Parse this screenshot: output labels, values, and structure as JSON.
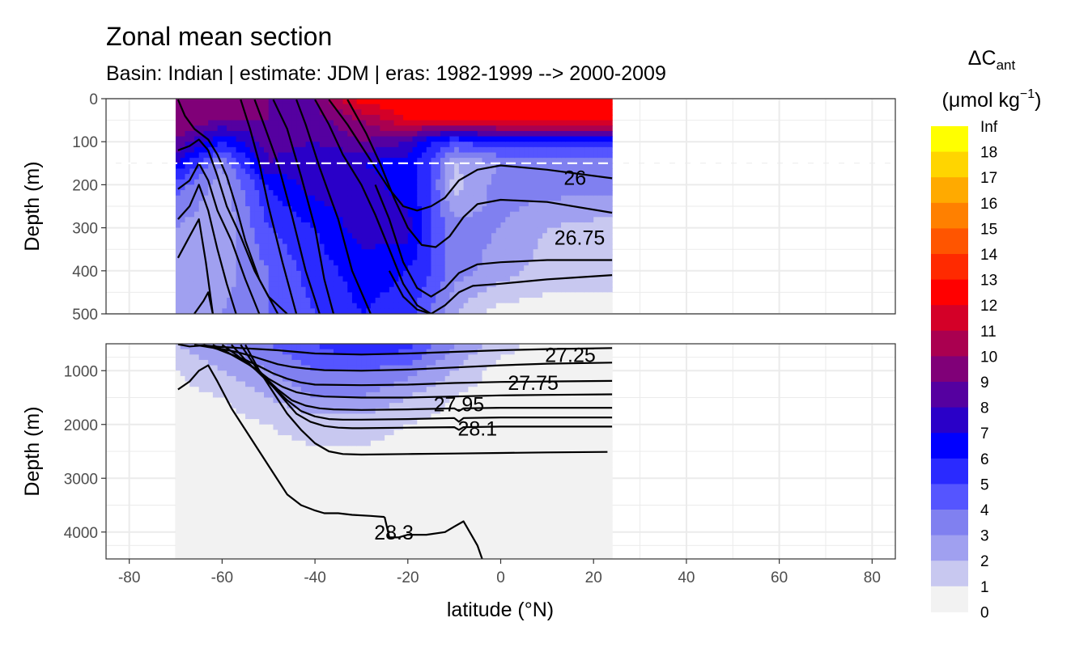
{
  "chart_data": {
    "type": "contour",
    "title": "Zonal mean section",
    "subtitle": "Basin: Indian | estimate: JDM  | eras: 1982-1999 --> 2000-2009",
    "xlabel": "latitude (°N)",
    "ylabel_top": "Depth (m)",
    "ylabel_bottom": "Depth (m)",
    "xlim": [
      -85,
      85
    ],
    "x_ticks": [
      -80,
      -60,
      -40,
      -20,
      0,
      20,
      40,
      60,
      80
    ],
    "x_tick_labels": [
      "-80",
      "-60",
      "-40",
      "-20",
      "0",
      "20",
      "40",
      "60",
      "80"
    ],
    "panels": [
      {
        "name": "upper",
        "ylim": [
          0,
          500
        ],
        "y_ticks": [
          0,
          100,
          200,
          300,
          400,
          500
        ],
        "y_tick_labels": [
          "0",
          "100",
          "200",
          "300",
          "400",
          "500"
        ]
      },
      {
        "name": "lower",
        "ylim": [
          500,
          4500
        ],
        "y_ticks": [
          1000,
          2000,
          3000,
          4000
        ],
        "y_tick_labels": [
          "1000",
          "2000",
          "3000",
          "4000"
        ]
      }
    ],
    "data_extent_lat": [
      -70,
      24
    ],
    "reference_depth_line": 150,
    "grid": true,
    "legend": {
      "title": "ΔC",
      "title_subscript": "ant",
      "units_prefix": "(μmol kg",
      "units_superscript": "−1",
      "units_suffix": ")",
      "placement": "right",
      "levels": [
        "Inf",
        "18",
        "17",
        "16",
        "15",
        "14",
        "13",
        "12",
        "11",
        "10",
        "9",
        "8",
        "7",
        "6",
        "5",
        "4",
        "3",
        "2",
        "1",
        "0"
      ],
      "colors": [
        "#ffff00",
        "#ffd500",
        "#ffaa00",
        "#ff8000",
        "#ff5500",
        "#ff2a00",
        "#ff0000",
        "#d40028",
        "#aa0050",
        "#800078",
        "#5500a0",
        "#2a00c8",
        "#0000ff",
        "#2a2aff",
        "#5555ff",
        "#8080f0",
        "#a0a0f0",
        "#c8c8f0",
        "#f2f2f2"
      ]
    },
    "fill_field_upper": [
      {
        "lat": [
          -70,
          -60,
          -50,
          -40,
          -30,
          -20,
          -15,
          -10,
          0,
          10,
          24
        ],
        "depth": 0,
        "dcant": [
          9.5,
          10,
          9,
          9,
          12.5,
          13,
          13,
          13,
          13,
          13,
          13
        ]
      },
      {
        "lat": [
          -70,
          -60,
          -50,
          -40,
          -30,
          -20,
          -15,
          -10,
          0,
          10,
          24
        ],
        "depth": 50,
        "dcant": [
          10,
          9,
          9,
          8.5,
          10,
          12,
          12,
          12,
          12.5,
          12.5,
          12.5
        ]
      },
      {
        "lat": [
          -70,
          -60,
          -50,
          -40,
          -30,
          -20,
          -15,
          -10,
          0,
          10,
          24
        ],
        "depth": 100,
        "dcant": [
          9,
          6,
          8.5,
          8,
          9,
          8,
          6,
          5,
          6,
          6,
          6
        ]
      },
      {
        "lat": [
          -70,
          -60,
          -50,
          -40,
          -30,
          -20,
          -15,
          -10,
          0,
          10,
          24
        ],
        "depth": 150,
        "dcant": [
          7,
          3,
          8,
          7,
          7,
          6.5,
          5,
          2,
          3,
          3,
          3
        ]
      },
      {
        "lat": [
          -70,
          -60,
          -50,
          -40,
          -30,
          -20,
          -15,
          -10,
          0,
          10,
          24
        ],
        "depth": 200,
        "dcant": [
          4.5,
          2.5,
          6,
          7.5,
          7.5,
          6.5,
          5,
          1.5,
          3.5,
          3.5,
          3.5
        ]
      },
      {
        "lat": [
          -70,
          -60,
          -50,
          -40,
          -30,
          -20,
          -15,
          -10,
          0,
          10,
          24
        ],
        "depth": 300,
        "dcant": [
          3,
          2,
          5,
          6,
          7.5,
          7.5,
          5,
          3.5,
          3,
          2,
          1.5
        ]
      },
      {
        "lat": [
          -70,
          -60,
          -50,
          -40,
          -30,
          -20,
          -15,
          -10,
          0,
          10,
          24
        ],
        "depth": 400,
        "dcant": [
          2.5,
          2.5,
          4,
          5.5,
          6.5,
          6,
          5,
          3.5,
          2.5,
          1.5,
          1.5
        ]
      },
      {
        "lat": [
          -70,
          -60,
          -50,
          -40,
          -30,
          -20,
          -15,
          -10,
          0,
          10,
          24
        ],
        "depth": 500,
        "dcant": [
          2,
          3,
          4,
          5,
          6,
          5.5,
          4,
          2,
          0.5,
          0.5,
          0.5
        ]
      }
    ],
    "fill_field_lower": [
      {
        "lat": [
          -70,
          -60,
          -50,
          -40,
          -30,
          -20,
          -10,
          0,
          10,
          24
        ],
        "depth": 500,
        "dcant": [
          2,
          3,
          4,
          5,
          6,
          5.5,
          3,
          1.5,
          0.5,
          0.5
        ]
      },
      {
        "lat": [
          -70,
          -60,
          -50,
          -40,
          -30,
          -20,
          -10,
          0,
          10,
          24
        ],
        "depth": 1000,
        "dcant": [
          1,
          2,
          3,
          4,
          4,
          3.5,
          2,
          0.5,
          0.2,
          0.2
        ]
      },
      {
        "lat": [
          -70,
          -60,
          -50,
          -40,
          -30,
          -20,
          -10,
          0,
          10,
          24
        ],
        "depth": 1500,
        "dcant": [
          0.5,
          1,
          2,
          3,
          3,
          2,
          1,
          0.3,
          0.1,
          0.1
        ]
      },
      {
        "lat": [
          -70,
          -60,
          -50,
          -40,
          -30,
          -20,
          -10,
          0,
          10,
          24
        ],
        "depth": 2000,
        "dcant": [
          0.3,
          0.5,
          1,
          1.5,
          1.5,
          1,
          0.5,
          0.2,
          0.1,
          0.1
        ]
      },
      {
        "lat": [
          -70,
          -60,
          -50,
          -40,
          -30,
          -20,
          -10,
          0,
          10,
          24
        ],
        "depth": 3000,
        "dcant": [
          0.2,
          0.2,
          0.3,
          0.3,
          0.3,
          0.2,
          0.2,
          0.1,
          0.1,
          0.1
        ]
      },
      {
        "lat": [
          -70,
          -60,
          -50,
          -40,
          -30,
          -20,
          -10,
          0,
          10,
          24
        ],
        "depth": 4500,
        "dcant": [
          0.1,
          0.1,
          0.1,
          0.1,
          0.1,
          0.1,
          0.1,
          0.1,
          0.1,
          0.1
        ]
      }
    ],
    "isopycnals_upper": [
      {
        "lat": [
          -69.5,
          -68,
          -66,
          -63,
          -61,
          -59,
          -57,
          -55,
          -52,
          -48
        ],
        "depth": [
          2,
          40,
          70,
          95,
          130,
          180,
          250,
          330,
          420,
          500
        ]
      },
      {
        "lat": [
          -69.5,
          -67,
          -65,
          -63,
          -61,
          -59,
          -56,
          -53,
          -50,
          -46
        ],
        "depth": [
          120,
          110,
          95,
          120,
          180,
          250,
          320,
          400,
          460,
          500
        ]
      },
      {
        "lat": [
          -69.5,
          -67,
          -65,
          -63,
          -61,
          -58,
          -55,
          -52
        ],
        "depth": [
          210,
          190,
          150,
          190,
          260,
          330,
          420,
          500
        ]
      },
      {
        "lat": [
          -69.5,
          -67,
          -65,
          -63,
          -61,
          -59,
          -57
        ],
        "depth": [
          280,
          250,
          200,
          260,
          350,
          430,
          500
        ]
      },
      {
        "lat": [
          -69.5,
          -67,
          -65,
          -63.5,
          -62
        ],
        "depth": [
          370,
          320,
          280,
          380,
          500
        ]
      },
      {
        "lat": [
          -66,
          -64,
          -63,
          -62
        ],
        "depth": [
          500,
          470,
          450,
          500
        ]
      },
      {
        "lat": [
          -56,
          -54,
          -52,
          -50,
          -47,
          -44
        ],
        "depth": [
          2,
          70,
          150,
          250,
          380,
          500
        ]
      },
      {
        "lat": [
          -53,
          -51,
          -48,
          -45,
          -42,
          -39
        ],
        "depth": [
          2,
          60,
          150,
          270,
          400,
          500
        ]
      },
      {
        "lat": [
          -49,
          -46,
          -43,
          -40,
          -38,
          -36
        ],
        "depth": [
          2,
          70,
          180,
          300,
          420,
          500
        ]
      },
      {
        "lat": [
          -44,
          -42,
          -39,
          -35,
          -32,
          -28
        ],
        "depth": [
          2,
          60,
          160,
          280,
          400,
          500
        ]
      },
      {
        "lat": [
          -40,
          -37,
          -34,
          -30,
          -27,
          -24,
          -21,
          -18,
          -15
        ],
        "depth": [
          2,
          60,
          130,
          200,
          270,
          350,
          430,
          480,
          500
        ]
      },
      {
        "lat": [
          -37,
          -33,
          -30,
          -27,
          -24,
          -21,
          -18,
          -15,
          -12,
          -9,
          -5,
          0,
          10,
          24
        ],
        "depth": [
          2,
          60,
          110,
          160,
          210,
          250,
          260,
          250,
          230,
          190,
          165,
          155,
          165,
          185
        ]
      },
      {
        "lat": [
          -33,
          -29,
          -26,
          -23,
          -20,
          -17,
          -14,
          -11,
          -8,
          -5,
          0,
          10,
          24
        ],
        "depth": [
          2,
          80,
          150,
          230,
          300,
          340,
          345,
          320,
          275,
          245,
          235,
          240,
          265
        ]
      },
      {
        "lat": [
          -27,
          -24,
          -21,
          -18,
          -15,
          -12,
          -9,
          -5,
          0,
          10,
          24
        ],
        "depth": [
          200,
          280,
          380,
          440,
          460,
          440,
          405,
          385,
          380,
          375,
          375
        ]
      },
      {
        "lat": [
          -24,
          -21,
          -18,
          -15,
          -12,
          -9,
          -6,
          0,
          10,
          24
        ],
        "depth": [
          400,
          460,
          490,
          500,
          480,
          450,
          435,
          430,
          420,
          410
        ]
      }
    ],
    "isopycnals_lower": [
      {
        "lat": [
          -69.5,
          -67,
          -64,
          -60,
          -56,
          -52,
          -48,
          -44,
          -40,
          -30,
          -20,
          -10,
          0,
          10,
          24
        ],
        "depth": [
          510,
          550,
          530,
          560,
          580,
          600,
          620,
          650,
          680,
          700,
          680,
          650,
          620,
          600,
          580
        ]
      },
      {
        "lat": [
          -66,
          -63,
          -60,
          -57,
          -54,
          -51,
          -48,
          -45,
          -42,
          -38,
          -30,
          -20,
          -10,
          0,
          10,
          24
        ],
        "depth": [
          520,
          560,
          600,
          650,
          720,
          800,
          880,
          930,
          960,
          990,
          1000,
          980,
          940,
          900,
          870,
          850
        ]
      },
      {
        "lat": [
          -64,
          -61,
          -58,
          -55,
          -52,
          -49,
          -46,
          -43,
          -40,
          -30,
          -20,
          -10,
          0,
          10,
          24
        ],
        "depth": [
          520,
          600,
          700,
          800,
          920,
          1050,
          1150,
          1220,
          1260,
          1270,
          1260,
          1230,
          1210,
          1200,
          1190
        ]
      },
      {
        "lat": [
          -62,
          -59,
          -56,
          -53,
          -50,
          -47,
          -44,
          -41,
          -38,
          -30,
          -20,
          -10,
          0,
          10,
          24
        ],
        "depth": [
          520,
          650,
          800,
          950,
          1150,
          1300,
          1400,
          1450,
          1480,
          1500,
          1500,
          1480,
          1460,
          1450,
          1440
        ]
      },
      {
        "lat": [
          -60,
          -57,
          -54,
          -51,
          -48,
          -45,
          -42,
          -39,
          -36,
          -30,
          -20,
          -10,
          -9,
          -8,
          0,
          10,
          24
        ],
        "depth": [
          520,
          700,
          900,
          1100,
          1350,
          1550,
          1650,
          1700,
          1720,
          1730,
          1720,
          1700,
          1750,
          1700,
          1690,
          1690,
          1690
        ]
      },
      {
        "lat": [
          -58,
          -55,
          -52,
          -49,
          -46,
          -43,
          -40,
          -37,
          -34,
          -30,
          -20,
          -10,
          -9,
          -8,
          0,
          10,
          24
        ],
        "depth": [
          520,
          800,
          1050,
          1300,
          1550,
          1750,
          1850,
          1900,
          1910,
          1910,
          1900,
          1880,
          1950,
          1880,
          1870,
          1870,
          1870
        ]
      },
      {
        "lat": [
          -56,
          -53,
          -50,
          -47,
          -44,
          -41,
          -38,
          -35,
          -32,
          -30,
          -20,
          -10,
          -9,
          -8,
          0,
          10,
          24
        ],
        "depth": [
          520,
          900,
          1200,
          1500,
          1800,
          1950,
          2030,
          2060,
          2070,
          2070,
          2060,
          2050,
          2100,
          2050,
          2040,
          2040,
          2040
        ]
      },
      {
        "lat": [
          -55,
          -52,
          -49,
          -46,
          -43,
          -40,
          -37,
          -34,
          -30,
          -20,
          -10,
          0,
          10,
          23
        ],
        "depth": [
          520,
          1000,
          1400,
          1800,
          2100,
          2350,
          2500,
          2550,
          2560,
          2550,
          2540,
          2530,
          2520,
          2510
        ]
      },
      {
        "lat": [
          -69.5,
          -67,
          -65,
          -63,
          -61,
          -58,
          -55,
          -52,
          -49,
          -46,
          -43,
          -40,
          -38,
          -35,
          -32,
          -28,
          -25
        ],
        "depth": [
          1350,
          1200,
          1000,
          900,
          1200,
          1700,
          2100,
          2500,
          2900,
          3300,
          3500,
          3600,
          3650,
          3650,
          3680,
          3700,
          3720
        ]
      },
      {
        "lat": [
          -25,
          -24,
          -22,
          -20,
          -16,
          -12,
          -10,
          -8,
          -6,
          -5,
          -4
        ],
        "depth": [
          3720,
          4100,
          4100,
          4050,
          4050,
          4000,
          3900,
          3800,
          4100,
          4250,
          4500
        ]
      }
    ],
    "contour_labels": [
      {
        "text": "26",
        "lat": 16,
        "depth": 183
      },
      {
        "text": "26.75",
        "lat": 17,
        "depth": 322
      },
      {
        "text": "27.25",
        "lat": 15,
        "depth": 700
      },
      {
        "text": "27.75",
        "lat": 7,
        "depth": 1220
      },
      {
        "text": "27.95",
        "lat": -9,
        "depth": 1620
      },
      {
        "text": "28.1",
        "lat": -5,
        "depth": 2070
      },
      {
        "text": "28.3",
        "lat": -23,
        "depth": 4000
      }
    ]
  }
}
